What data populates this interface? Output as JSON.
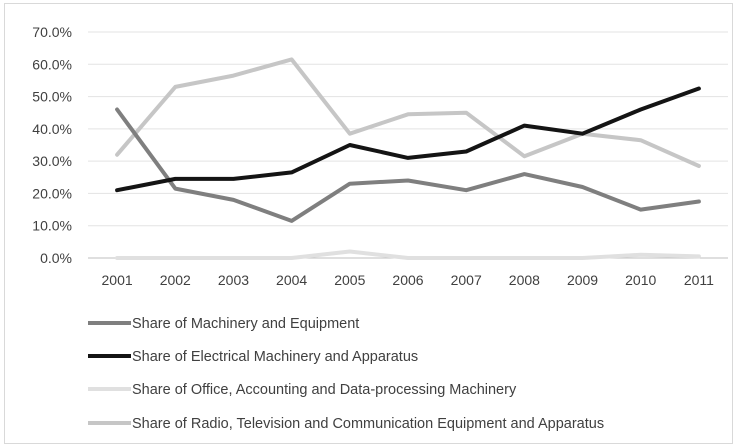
{
  "chart_data": {
    "type": "line",
    "categories": [
      "2001",
      "2002",
      "2003",
      "2004",
      "2005",
      "2006",
      "2007",
      "2008",
      "2009",
      "2010",
      "2011"
    ],
    "y_ticks": [
      "0.0%",
      "10.0%",
      "20.0%",
      "30.0%",
      "40.0%",
      "50.0%",
      "60.0%",
      "70.0%"
    ],
    "ylim": [
      0,
      70
    ],
    "y_unit": "%",
    "grid": true,
    "legend_position": "bottom",
    "series": [
      {
        "name": "Share of Machinery and Equipment",
        "color": "#7f7f7f",
        "values": [
          46.0,
          21.5,
          18.0,
          11.5,
          23.0,
          24.0,
          21.0,
          26.0,
          22.0,
          15.0,
          17.5
        ]
      },
      {
        "name": "Share of Electrical Machinery and Apparatus",
        "color": "#141414",
        "values": [
          21.0,
          24.5,
          24.5,
          26.5,
          35.0,
          31.0,
          33.0,
          41.0,
          38.5,
          46.0,
          52.5
        ]
      },
      {
        "name": "Share of Office, Accounting and Data-processing Machinery",
        "color": "#e0e0e0",
        "values": [
          0.0,
          0.0,
          0.0,
          0.0,
          2.0,
          0.0,
          0.0,
          0.0,
          0.0,
          1.0,
          0.5
        ]
      },
      {
        "name": "Share of Radio, Television and Communication Equipment and Apparatus",
        "color": "#c6c6c6",
        "values": [
          32.0,
          53.0,
          56.5,
          61.5,
          38.5,
          44.5,
          45.0,
          31.5,
          38.5,
          36.5,
          28.5
        ]
      }
    ]
  }
}
